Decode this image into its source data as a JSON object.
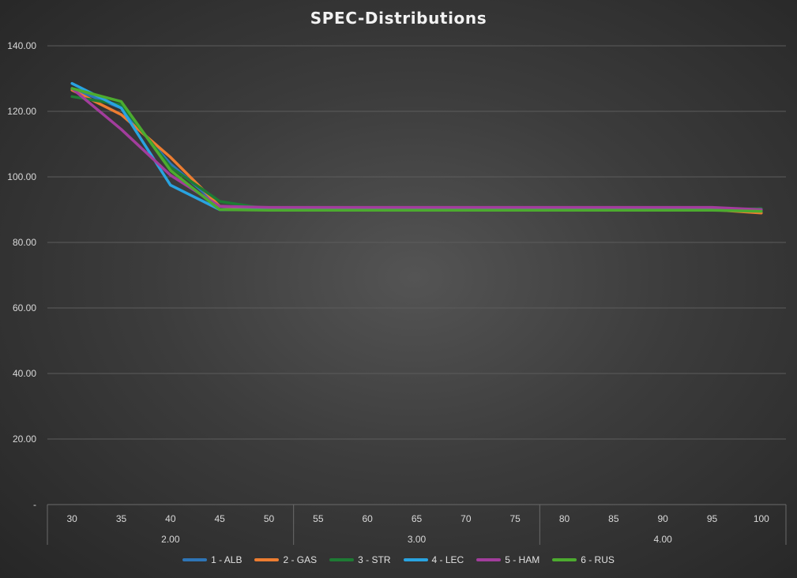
{
  "chart_data": {
    "type": "line",
    "title": "SPEC-Distributions",
    "xlabel": "",
    "ylabel": "",
    "ylim": [
      0,
      140
    ],
    "y_ticks": [
      "-",
      "20.00",
      "40.00",
      "60.00",
      "80.00",
      "100.00",
      "120.00",
      "140.00"
    ],
    "grid": true,
    "legend_position": "bottom",
    "categories": [
      "30",
      "35",
      "40",
      "45",
      "50",
      "55",
      "60",
      "65",
      "70",
      "75",
      "80",
      "85",
      "90",
      "95",
      "100"
    ],
    "groups": [
      {
        "label": "2.00",
        "count": 5
      },
      {
        "label": "3.00",
        "count": 5
      },
      {
        "label": "4.00",
        "count": 5
      }
    ],
    "series": [
      {
        "name": "1 - ALB",
        "color": "#2e75b6",
        "values": [
          127,
          121,
          104,
          91,
          90.5,
          90.3,
          90.3,
          90.3,
          90.3,
          90.3,
          90.3,
          90.3,
          90.3,
          90.3,
          90
        ]
      },
      {
        "name": "2 - GAS",
        "color": "#ed7d31",
        "values": [
          126.5,
          119,
          106,
          91,
          90.2,
          90,
          90,
          90,
          90,
          90,
          90,
          90,
          90,
          90,
          89
        ]
      },
      {
        "name": "3 - STR",
        "color": "#1e7b34",
        "values": [
          124.5,
          122,
          103,
          92.5,
          90.2,
          90,
          90,
          90,
          90,
          90,
          90,
          90,
          90,
          90,
          90.3
        ]
      },
      {
        "name": "4 - LEC",
        "color": "#29a3e0",
        "values": [
          128.5,
          121,
          97.5,
          90,
          90,
          90,
          90,
          90,
          90,
          90,
          90,
          90,
          90,
          90,
          90
        ]
      },
      {
        "name": "5 - HAM",
        "color": "#a23d9c",
        "values": [
          127,
          114.5,
          100.5,
          91,
          90.7,
          90.7,
          90.7,
          90.7,
          90.7,
          90.7,
          90.7,
          90.7,
          90.7,
          90.7,
          90
        ]
      },
      {
        "name": "6 - RUS",
        "color": "#4cab2f",
        "values": [
          127,
          123,
          102,
          90,
          89.8,
          89.8,
          89.8,
          89.8,
          89.8,
          89.8,
          89.8,
          89.8,
          89.8,
          89.8,
          89.5
        ]
      }
    ]
  }
}
